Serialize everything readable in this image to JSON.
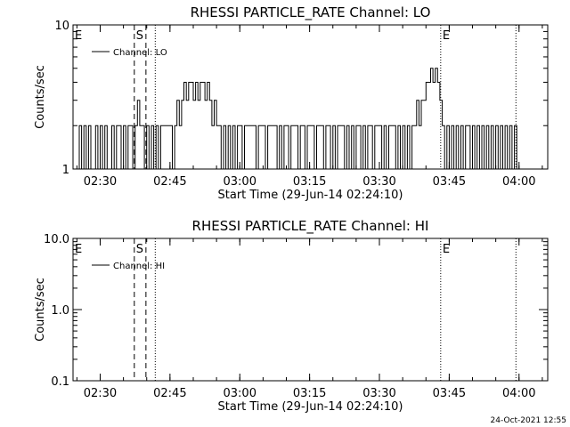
{
  "footer": {
    "timestamp": "24-Oct-2021 12:55"
  },
  "chart_data": [
    {
      "type": "line",
      "title": "RHESSI PARTICLE_RATE Channel: LO",
      "xlabel": "Start Time (29-Jun-14 02:24:10)",
      "ylabel": "Counts/sec",
      "yscale": "log",
      "ylim": [
        1,
        10
      ],
      "xlim": [
        "02:24:10",
        "04:06:10"
      ],
      "xticks": [
        "02:30",
        "02:45",
        "03:00",
        "03:15",
        "03:30",
        "03:45",
        "04:00"
      ],
      "yticks": [
        "1",
        "10"
      ],
      "legend": {
        "position": "top-left",
        "entries": [
          "Channel: LO"
        ]
      },
      "markers": [
        {
          "label": "E",
          "time": "02:24:10",
          "style": "dotted"
        },
        {
          "label": "S",
          "time": "02:37:20",
          "style": "dashed"
        },
        {
          "label": "",
          "time": "02:39:50",
          "style": "dashed"
        },
        {
          "label": "",
          "time": "02:41:50",
          "style": "dotted"
        },
        {
          "label": "E",
          "time": "03:43:10",
          "style": "dotted"
        },
        {
          "label": "",
          "time": "03:59:20",
          "style": "dotted"
        }
      ],
      "series": [
        {
          "name": "Channel: LO",
          "x": [
            "02:25",
            "02:25:30",
            "02:26",
            "02:26:30",
            "02:27",
            "02:27:30",
            "02:28",
            "02:28:30",
            "02:29",
            "02:29:30",
            "02:30",
            "02:30:30",
            "02:31",
            "02:31:30",
            "02:32",
            "02:32:30",
            "02:33",
            "02:33:30",
            "02:34",
            "02:34:30",
            "02:35",
            "02:35:30",
            "02:36",
            "02:36:30",
            "02:37",
            "02:37:30",
            "02:38",
            "02:38:30",
            "02:39",
            "02:39:30",
            "02:40",
            "02:40:30",
            "02:41",
            "02:41:30",
            "02:42",
            "02:42:30",
            "02:43",
            "02:43:30",
            "02:44",
            "02:44:30",
            "02:45",
            "02:45:30",
            "02:46",
            "02:46:30",
            "02:47",
            "02:47:30",
            "02:48",
            "02:48:30",
            "02:49",
            "02:49:30",
            "02:50",
            "02:50:30",
            "02:51",
            "02:51:30",
            "02:52",
            "02:52:30",
            "02:53",
            "02:53:30",
            "02:54",
            "02:54:30",
            "02:55",
            "02:55:30",
            "02:56",
            "02:56:30",
            "02:57",
            "02:57:30",
            "02:58",
            "02:58:30",
            "02:59",
            "02:59:30",
            "03:00",
            "03:00:30",
            "03:01",
            "03:01:30",
            "03:02",
            "03:02:30",
            "03:03",
            "03:03:30",
            "03:04",
            "03:04:30",
            "03:05",
            "03:05:30",
            "03:06",
            "03:06:30",
            "03:07",
            "03:07:30",
            "03:08",
            "03:08:30",
            "03:09",
            "03:09:30",
            "03:10",
            "03:10:30",
            "03:11",
            "03:11:30",
            "03:12",
            "03:12:30",
            "03:13",
            "03:13:30",
            "03:14",
            "03:14:30",
            "03:15",
            "03:15:30",
            "03:16",
            "03:16:30",
            "03:17",
            "03:17:30",
            "03:18",
            "03:18:30",
            "03:19",
            "03:19:30",
            "03:20",
            "03:20:30",
            "03:21",
            "03:21:30",
            "03:22",
            "03:22:30",
            "03:23",
            "03:23:30",
            "03:24",
            "03:24:30",
            "03:25",
            "03:25:30",
            "03:26",
            "03:26:30",
            "03:27",
            "03:27:30",
            "03:28",
            "03:28:30",
            "03:29",
            "03:29:30",
            "03:30",
            "03:30:30",
            "03:31",
            "03:31:30",
            "03:32",
            "03:32:30",
            "03:33",
            "03:33:30",
            "03:34",
            "03:34:30",
            "03:35",
            "03:35:30",
            "03:36",
            "03:36:30",
            "03:37",
            "03:37:30",
            "03:38",
            "03:38:30",
            "03:39",
            "03:39:30",
            "03:40",
            "03:40:30",
            "03:41",
            "03:41:30",
            "03:42",
            "03:42:30",
            "03:43",
            "03:43:30",
            "03:44",
            "03:44:30",
            "03:45",
            "03:45:30",
            "03:46",
            "03:46:30",
            "03:47",
            "03:47:30",
            "03:48",
            "03:48:30",
            "03:49",
            "03:49:30",
            "03:50",
            "03:50:30",
            "03:51",
            "03:51:30",
            "03:52",
            "03:52:30",
            "03:53",
            "03:53:30",
            "03:54",
            "03:54:30",
            "03:55",
            "03:55:30",
            "03:56",
            "03:56:30",
            "03:57",
            "03:57:30",
            "03:58",
            "03:58:30",
            "03:59",
            "03:59:30"
          ],
          "values": [
            1,
            2,
            1,
            2,
            1,
            2,
            1,
            1,
            2,
            1,
            2,
            1,
            2,
            1,
            1,
            2,
            1,
            2,
            2,
            1,
            2,
            1,
            2,
            2,
            1,
            2,
            3,
            2,
            2,
            1,
            2,
            1,
            2,
            1,
            2,
            1,
            2,
            2,
            2,
            2,
            2,
            1,
            2,
            3,
            2,
            3,
            4,
            3,
            4,
            4,
            3,
            4,
            3,
            4,
            4,
            3,
            4,
            3,
            2,
            3,
            2,
            2,
            1,
            2,
            1,
            2,
            1,
            2,
            1,
            2,
            2,
            1,
            2,
            2,
            2,
            2,
            2,
            1,
            2,
            2,
            2,
            1,
            2,
            2,
            2,
            2,
            1,
            2,
            1,
            2,
            2,
            1,
            2,
            2,
            2,
            1,
            2,
            2,
            1,
            2,
            2,
            2,
            1,
            2,
            2,
            2,
            1,
            2,
            2,
            1,
            2,
            1,
            2,
            2,
            2,
            1,
            2,
            1,
            2,
            1,
            2,
            2,
            1,
            2,
            1,
            2,
            2,
            1,
            2,
            2,
            2,
            1,
            2,
            1,
            2,
            2,
            2,
            1,
            2,
            1,
            2,
            1,
            2,
            1,
            2,
            2,
            3,
            2,
            3,
            3,
            4,
            4,
            5,
            4,
            5,
            4,
            3,
            2,
            1,
            2,
            1,
            2,
            1,
            2,
            1,
            2,
            1,
            2,
            2,
            1,
            2,
            1,
            2,
            1,
            2,
            1,
            2,
            1,
            2,
            1,
            2,
            1,
            2,
            1,
            2,
            1,
            2,
            1,
            2,
            1
          ]
        }
      ]
    },
    {
      "type": "line",
      "title": "RHESSI PARTICLE_RATE Channel: HI",
      "xlabel": "Start Time (29-Jun-14 02:24:10)",
      "ylabel": "Counts/sec",
      "yscale": "log",
      "ylim": [
        0.1,
        10
      ],
      "xlim": [
        "02:24:10",
        "04:06:10"
      ],
      "xticks": [
        "02:30",
        "02:45",
        "03:00",
        "03:15",
        "03:30",
        "03:45",
        "04:00"
      ],
      "yticks": [
        "0.1",
        "1.0",
        "10.0"
      ],
      "legend": {
        "position": "top-left",
        "entries": [
          "Channel: HI"
        ]
      },
      "markers": [
        {
          "label": "E",
          "time": "02:24:10",
          "style": "dotted"
        },
        {
          "label": "S",
          "time": "02:37:20",
          "style": "dashed"
        },
        {
          "label": "",
          "time": "02:39:50",
          "style": "dashed"
        },
        {
          "label": "",
          "time": "02:41:50",
          "style": "dotted"
        },
        {
          "label": "E",
          "time": "03:43:10",
          "style": "dotted"
        },
        {
          "label": "",
          "time": "03:59:20",
          "style": "dotted"
        }
      ],
      "series": [
        {
          "name": "Channel: HI",
          "x": [],
          "values": []
        }
      ]
    }
  ]
}
